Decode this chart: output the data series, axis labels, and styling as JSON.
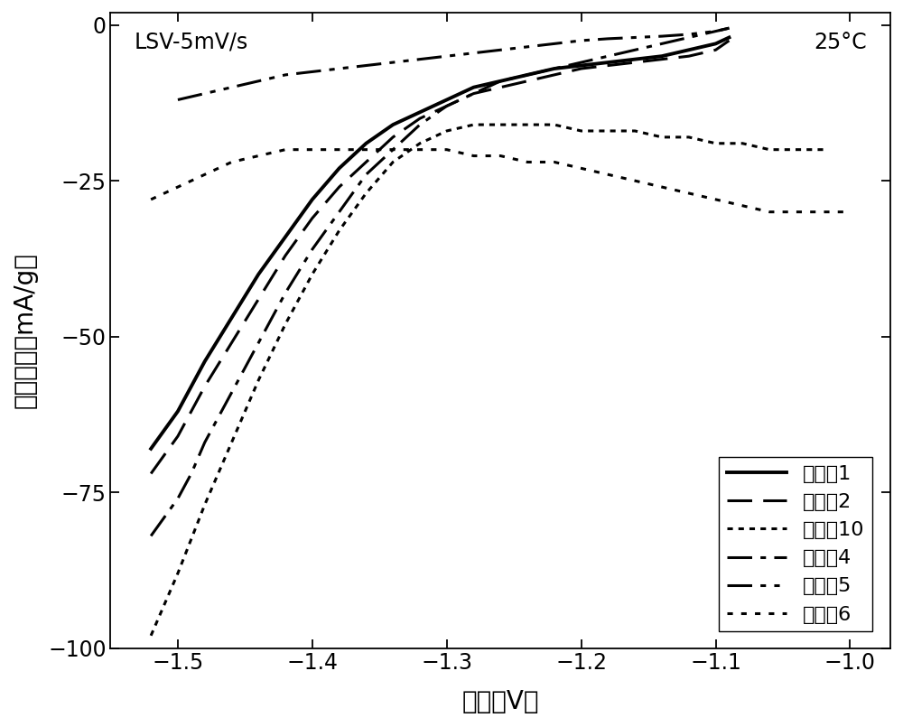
{
  "title_left": "LSV-5mV/s",
  "title_right": "25°C",
  "xlabel": "电位（V）",
  "ylabel": "电流密度（mA/g）",
  "xlim": [
    -1.55,
    -0.97
  ],
  "ylim": [
    -100,
    2
  ],
  "xticks": [
    -1.5,
    -1.4,
    -1.3,
    -1.2,
    -1.1,
    -1.0
  ],
  "yticks": [
    0,
    -25,
    -50,
    -75,
    -100
  ],
  "series": [
    {
      "label": "实施例1",
      "ls_key": "solid",
      "lw": 2.8,
      "x": [
        -1.52,
        -1.5,
        -1.49,
        -1.48,
        -1.46,
        -1.44,
        -1.42,
        -1.4,
        -1.38,
        -1.36,
        -1.34,
        -1.32,
        -1.3,
        -1.28,
        -1.26,
        -1.24,
        -1.22,
        -1.2,
        -1.18,
        -1.16,
        -1.14,
        -1.12,
        -1.1,
        -1.09
      ],
      "y": [
        -68,
        -62,
        -58,
        -54,
        -47,
        -40,
        -34,
        -28,
        -23,
        -19,
        -16,
        -14,
        -12,
        -10,
        -9,
        -8,
        -7,
        -6.5,
        -6,
        -5.5,
        -5,
        -4,
        -3,
        -2
      ]
    },
    {
      "label": "实施例2",
      "ls_key": "longdash",
      "lw": 2.2,
      "x": [
        -1.52,
        -1.5,
        -1.49,
        -1.48,
        -1.46,
        -1.44,
        -1.42,
        -1.4,
        -1.38,
        -1.36,
        -1.34,
        -1.32,
        -1.3,
        -1.28,
        -1.26,
        -1.24,
        -1.22,
        -1.2,
        -1.18,
        -1.16,
        -1.14,
        -1.12,
        -1.1,
        -1.09
      ],
      "y": [
        -72,
        -66,
        -62,
        -58,
        -51,
        -44,
        -37,
        -31,
        -26,
        -22,
        -18,
        -15,
        -13,
        -11,
        -10,
        -9,
        -8,
        -7,
        -6.5,
        -6,
        -5.5,
        -5,
        -4,
        -2.5
      ]
    },
    {
      "label": "实施例10",
      "ls_key": "dotted",
      "lw": 2.2,
      "x": [
        -1.52,
        -1.5,
        -1.48,
        -1.46,
        -1.44,
        -1.42,
        -1.4,
        -1.38,
        -1.36,
        -1.34,
        -1.32,
        -1.3,
        -1.28,
        -1.26,
        -1.24,
        -1.22,
        -1.2,
        -1.18,
        -1.16,
        -1.14,
        -1.12,
        -1.1,
        -1.08,
        -1.06,
        -1.04,
        -1.02
      ],
      "y": [
        -98,
        -88,
        -77,
        -67,
        -57,
        -48,
        -40,
        -33,
        -27,
        -22,
        -19,
        -17,
        -16,
        -16,
        -16,
        -16,
        -17,
        -17,
        -17,
        -18,
        -18,
        -19,
        -19,
        -20,
        -20,
        -20
      ]
    },
    {
      "label": "对比例4",
      "ls_key": "dashdot",
      "lw": 2.2,
      "x": [
        -1.52,
        -1.5,
        -1.49,
        -1.48,
        -1.46,
        -1.44,
        -1.42,
        -1.4,
        -1.38,
        -1.36,
        -1.34,
        -1.32,
        -1.3,
        -1.28,
        -1.26,
        -1.24,
        -1.22,
        -1.2,
        -1.18,
        -1.16,
        -1.14,
        -1.12,
        -1.1,
        -1.09
      ],
      "y": [
        -82,
        -76,
        -72,
        -67,
        -59,
        -51,
        -43,
        -36,
        -30,
        -24,
        -20,
        -16,
        -13,
        -11,
        -9,
        -8,
        -7,
        -6,
        -5,
        -4,
        -3,
        -2,
        -1,
        -0.5
      ]
    },
    {
      "label": "对比例5",
      "ls_key": "dashdotdot",
      "lw": 2.2,
      "x": [
        -1.5,
        -1.48,
        -1.46,
        -1.44,
        -1.42,
        -1.4,
        -1.38,
        -1.36,
        -1.34,
        -1.32,
        -1.3,
        -1.28,
        -1.26,
        -1.24,
        -1.22,
        -1.2,
        -1.18,
        -1.16,
        -1.14,
        -1.12,
        -1.1,
        -1.09
      ],
      "y": [
        -12,
        -11,
        -10,
        -9,
        -8,
        -7.5,
        -7,
        -6.5,
        -6,
        -5.5,
        -5,
        -4.5,
        -4,
        -3.5,
        -3,
        -2.5,
        -2.2,
        -2,
        -1.8,
        -1.5,
        -1,
        -0.5
      ]
    },
    {
      "label": "对比例6",
      "ls_key": "smalldot",
      "lw": 2.2,
      "x": [
        -1.52,
        -1.5,
        -1.48,
        -1.46,
        -1.44,
        -1.42,
        -1.4,
        -1.38,
        -1.36,
        -1.34,
        -1.32,
        -1.3,
        -1.28,
        -1.26,
        -1.24,
        -1.22,
        -1.2,
        -1.18,
        -1.16,
        -1.14,
        -1.12,
        -1.1,
        -1.08,
        -1.06,
        -1.04,
        -1.02,
        -1.0
      ],
      "y": [
        -28,
        -26,
        -24,
        -22,
        -21,
        -20,
        -20,
        -20,
        -20,
        -20,
        -20,
        -20,
        -21,
        -21,
        -22,
        -22,
        -23,
        -24,
        -25,
        -26,
        -27,
        -28,
        -29,
        -30,
        -30,
        -30,
        -30
      ]
    }
  ],
  "background_color": "#ffffff",
  "font_size_labels": 20,
  "font_size_ticks": 17,
  "font_size_legend": 16,
  "font_size_annot": 17
}
